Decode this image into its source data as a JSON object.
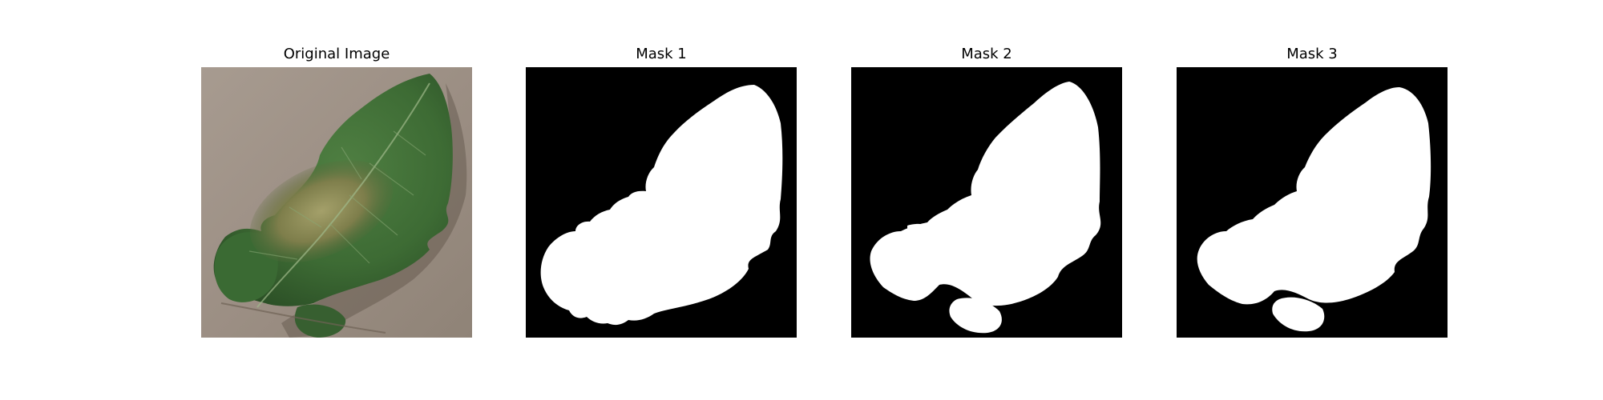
{
  "figure": {
    "panels": [
      {
        "title": "Original Image",
        "kind": "photo",
        "subject": "leaf"
      },
      {
        "title": "Mask 1",
        "kind": "mask"
      },
      {
        "title": "Mask 2",
        "kind": "mask"
      },
      {
        "title": "Mask 3",
        "kind": "mask"
      }
    ]
  },
  "colors": {
    "background": "#ffffff",
    "mask_foreground": "#ffffff",
    "mask_background": "#000000",
    "leaf_green": "#3f6b35",
    "leaf_dark": "#2a4a24",
    "leaf_lesion": "#8a8a55",
    "photo_background": "#a3968b"
  }
}
